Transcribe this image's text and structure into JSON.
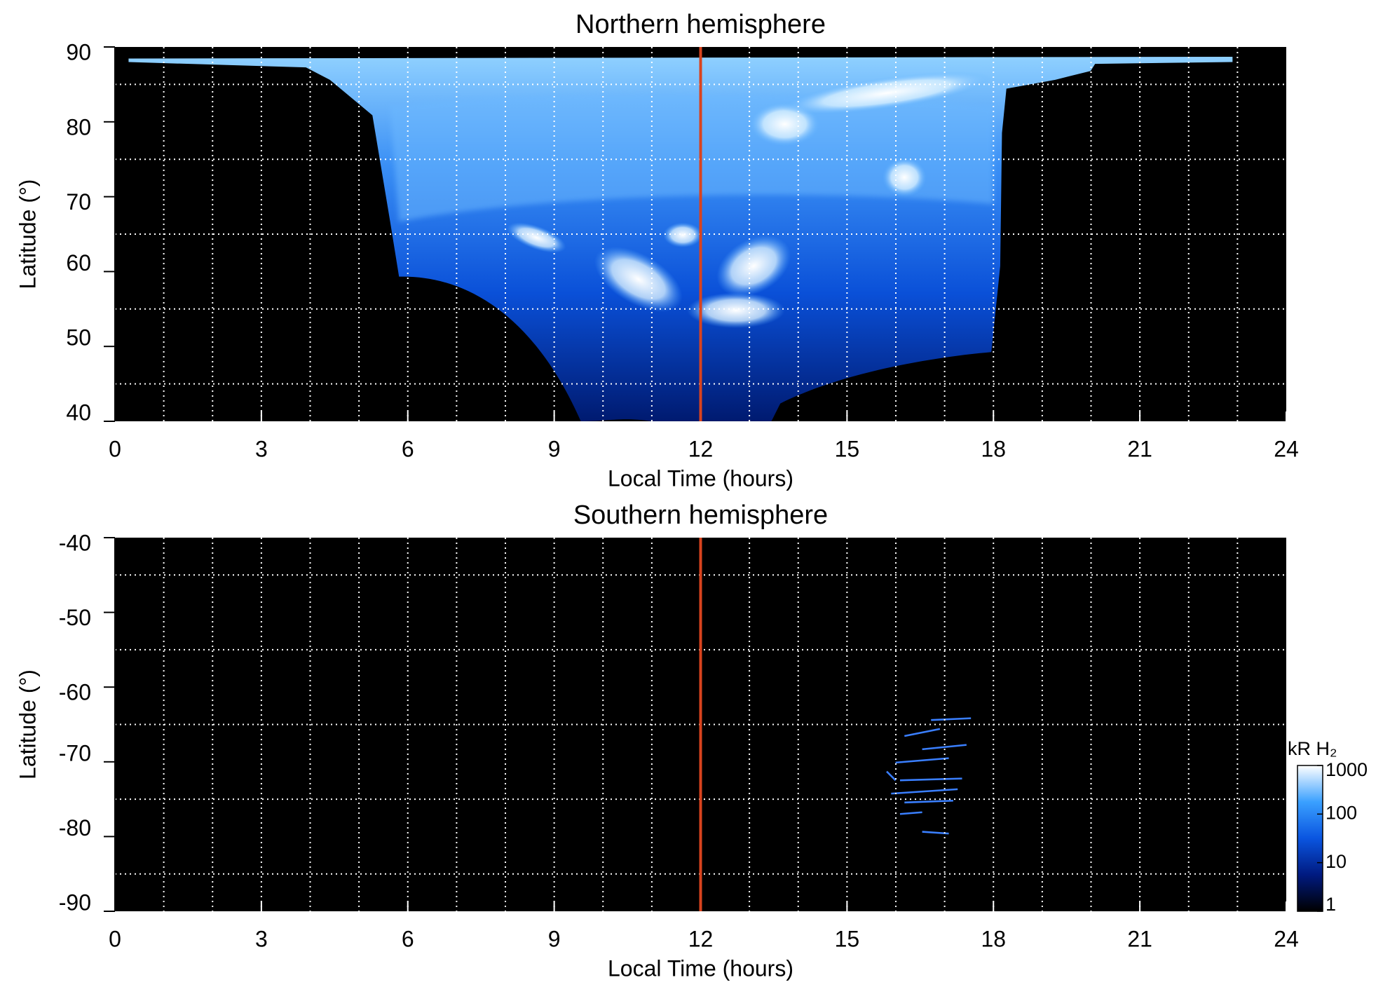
{
  "chart_data": [
    {
      "type": "heatmap",
      "title": "Northern hemisphere",
      "xlabel": "Local Time (hours)",
      "ylabel": "Latitude (°)",
      "xlim": [
        0,
        24
      ],
      "xticks": [
        0,
        3,
        6,
        9,
        12,
        15,
        18,
        21,
        24
      ],
      "ylim": [
        40,
        90
      ],
      "yticks": [
        90,
        80,
        70,
        60,
        50,
        40
      ],
      "xgrid": [
        1,
        2,
        3,
        4,
        5,
        6,
        7,
        8,
        9,
        10,
        11,
        13,
        14,
        15,
        16,
        17,
        18,
        19,
        20,
        21,
        22,
        23
      ],
      "ygrid": [
        85,
        75,
        65,
        55,
        45
      ],
      "vline": {
        "x": 12,
        "color": "#d9431e"
      }
    },
    {
      "type": "heatmap",
      "title": "Southern hemisphere",
      "xlabel": "Local Time (hours)",
      "ylabel": "Latitude (°)",
      "xlim": [
        0,
        24
      ],
      "xticks": [
        0,
        3,
        6,
        9,
        12,
        15,
        18,
        21,
        24
      ],
      "ylim": [
        -90,
        -40
      ],
      "yticks": [
        -40,
        -50,
        -60,
        -70,
        -80,
        -90
      ],
      "xgrid": [
        1,
        2,
        3,
        4,
        5,
        6,
        7,
        8,
        9,
        10,
        11,
        13,
        14,
        15,
        16,
        17,
        18,
        19,
        20,
        21,
        22,
        23
      ],
      "ygrid": [
        -45,
        -55,
        -65,
        -75,
        -85
      ],
      "vline": {
        "x": 12,
        "color": "#d9431e"
      },
      "colorbar": {
        "label": "kR H₂",
        "scale": "log",
        "lim": [
          1,
          1000
        ],
        "ticks": [
          1,
          10,
          100,
          1000
        ],
        "colors": [
          "#000000",
          "#001a80",
          "#0a55e0",
          "#3aa0ff",
          "#ffffff"
        ]
      }
    }
  ]
}
